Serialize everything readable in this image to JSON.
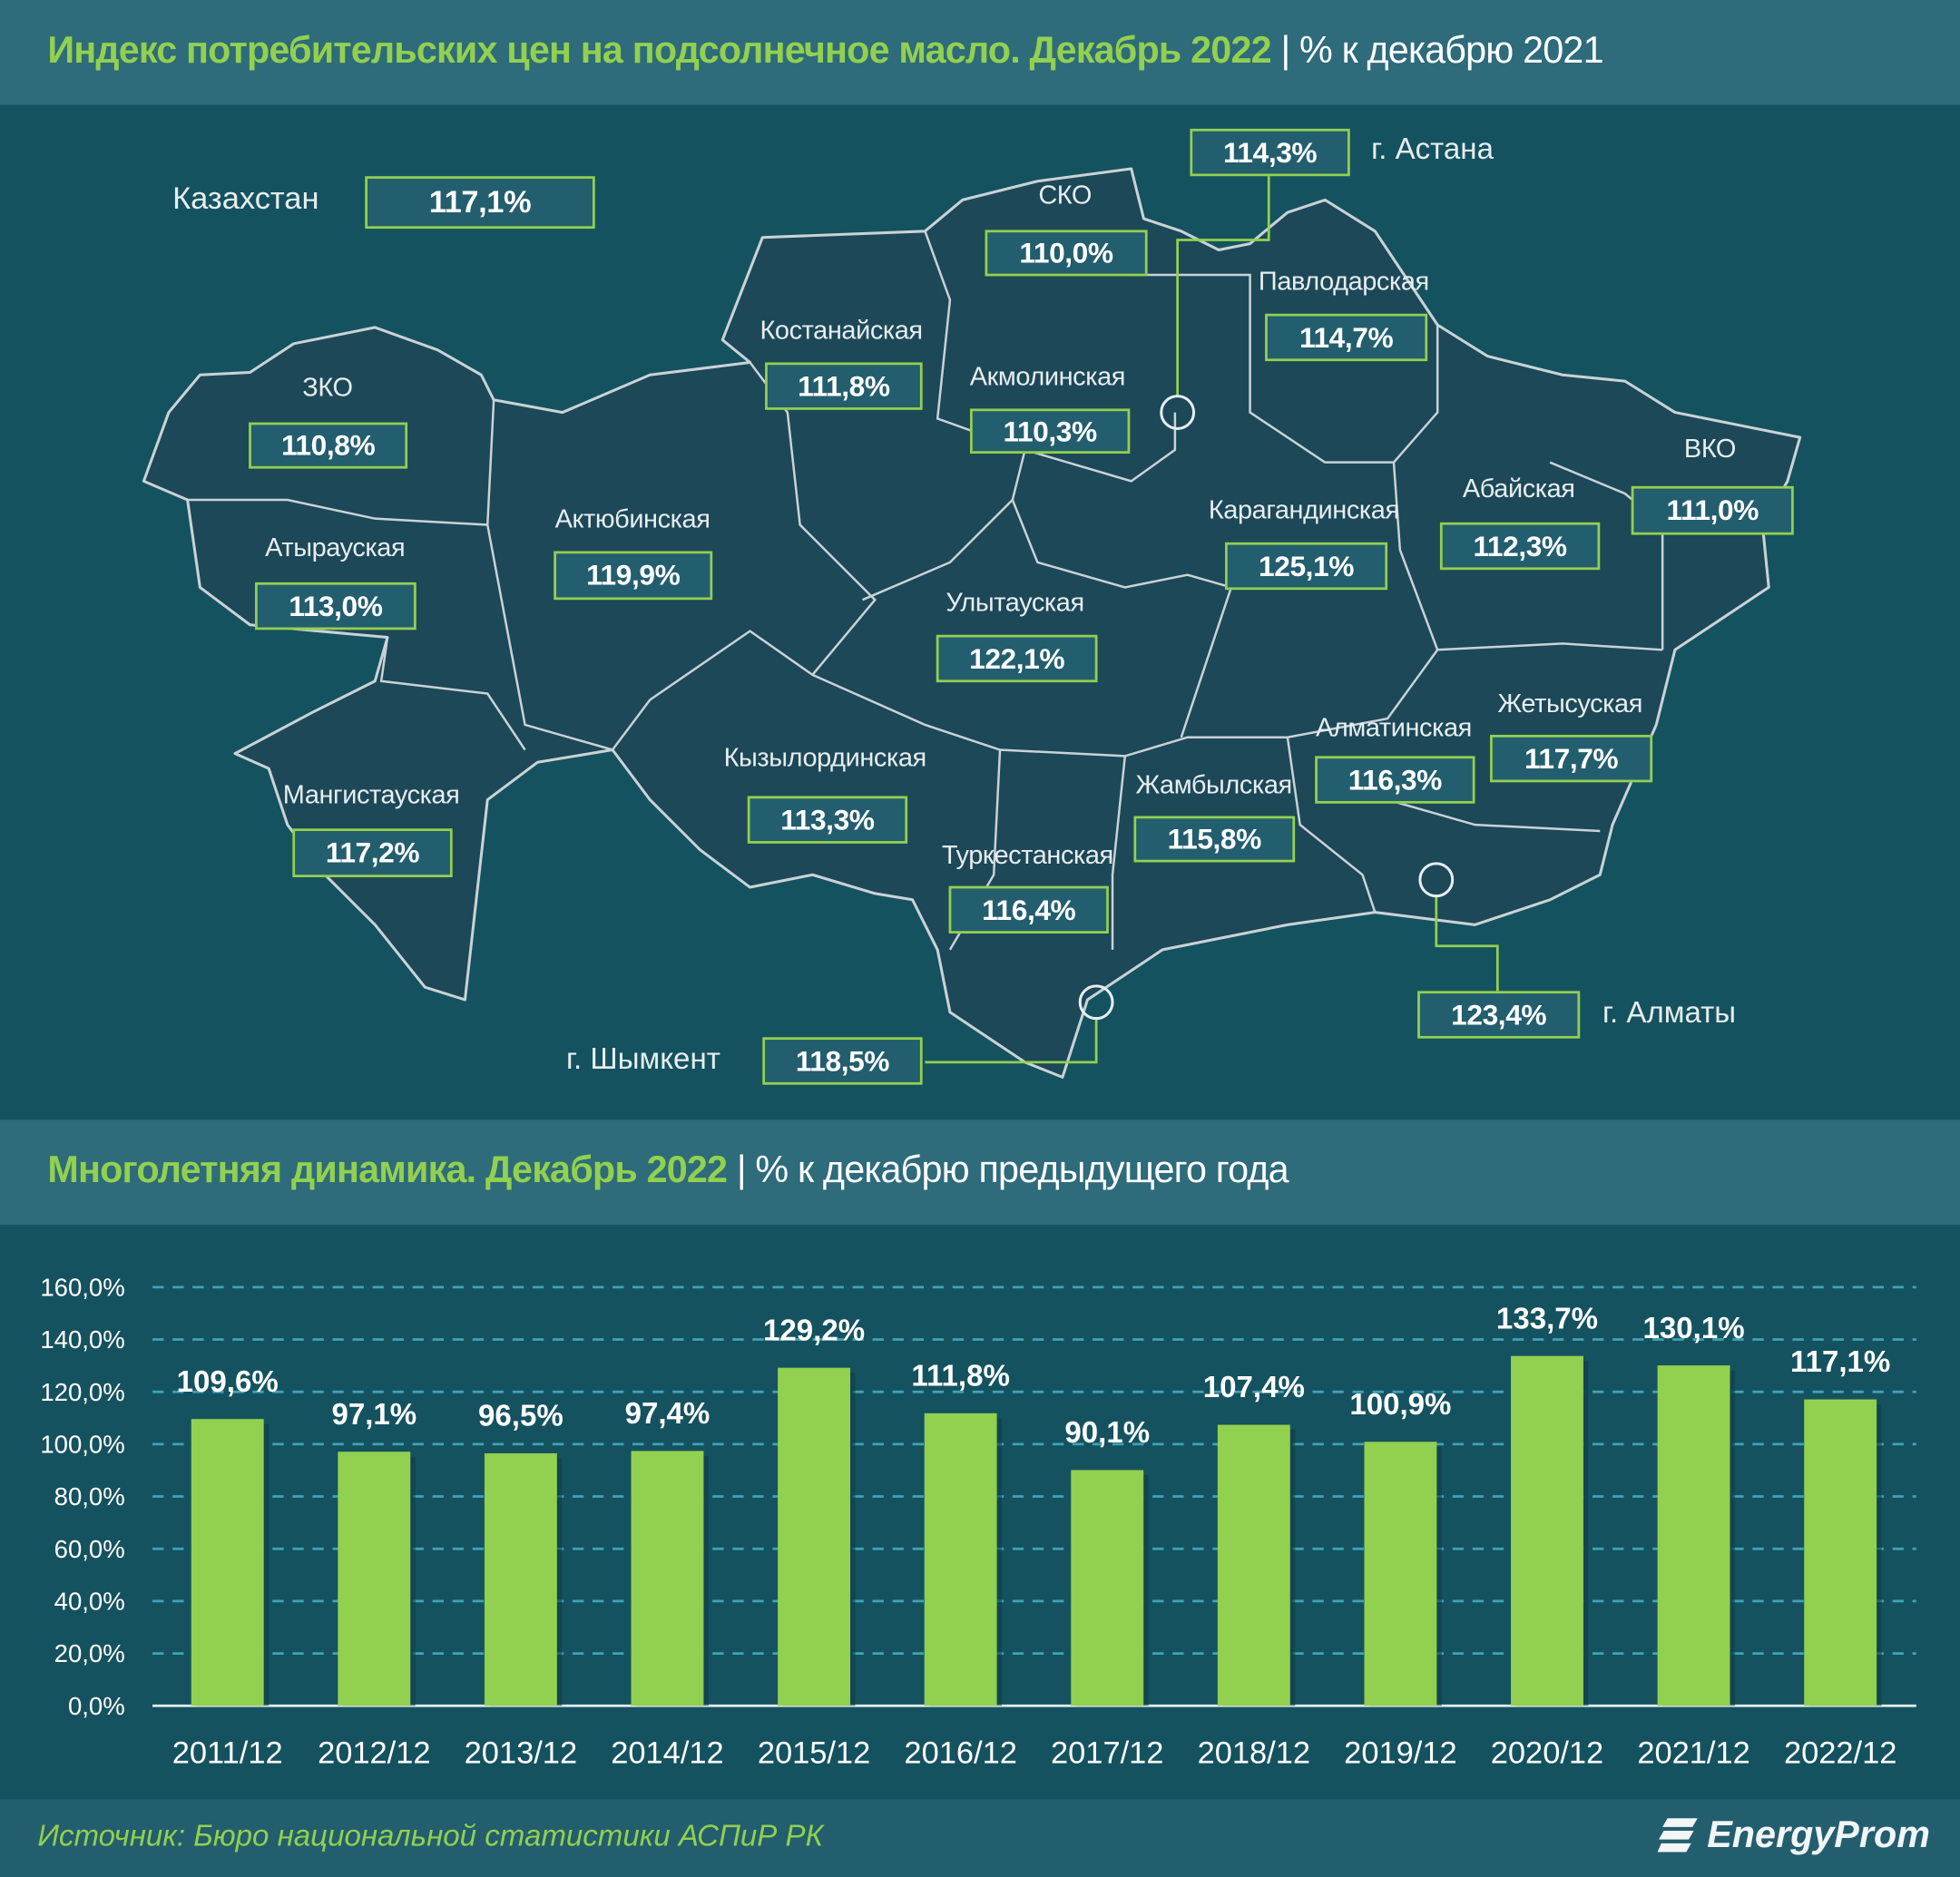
{
  "header1": {
    "title_green": "Индекс потребительских цен на подсолнечное масло. Декабрь 2022",
    "separator": " | ",
    "title_white": "% к декабрю 2021"
  },
  "map": {
    "country": {
      "name": "Казахстан",
      "value": "117,1%"
    },
    "regions": [
      {
        "name": "г. Астана",
        "value": "114,3%"
      },
      {
        "name": "СКО",
        "value": "110,0%"
      },
      {
        "name": "Павлодарская",
        "value": "114,7%"
      },
      {
        "name": "Костанайская",
        "value": "111,8%"
      },
      {
        "name": "Акмолинская",
        "value": "110,3%"
      },
      {
        "name": "ЗКО",
        "value": "110,8%"
      },
      {
        "name": "Актюбинская",
        "value": "119,9%"
      },
      {
        "name": "Карагандинская",
        "value": "125,1%"
      },
      {
        "name": "Абайская",
        "value": "112,3%"
      },
      {
        "name": "ВКО",
        "value": "111,0%"
      },
      {
        "name": "Атырауская",
        "value": "113,0%"
      },
      {
        "name": "Улытауская",
        "value": "122,1%"
      },
      {
        "name": "Жетысуская",
        "value": "117,7%"
      },
      {
        "name": "Алматинская",
        "value": "116,3%"
      },
      {
        "name": "Кызылординская",
        "value": "113,3%"
      },
      {
        "name": "Жамбылская",
        "value": "115,8%"
      },
      {
        "name": "Мангистауская",
        "value": "117,2%"
      },
      {
        "name": "Туркестанская",
        "value": "116,4%"
      },
      {
        "name": "г. Алматы",
        "value": "123,4%"
      },
      {
        "name": "г. Шымкент",
        "value": "118,5%"
      }
    ]
  },
  "header2": {
    "title_green": "Многолетняя динамика. Декабрь 2022",
    "separator": " | ",
    "title_white": "% к декабрю предыдущего года"
  },
  "chart_data": {
    "type": "bar",
    "categories": [
      "2011/12",
      "2012/12",
      "2013/12",
      "2014/12",
      "2015/12",
      "2016/12",
      "2017/12",
      "2018/12",
      "2019/12",
      "2020/12",
      "2021/12",
      "2022/12"
    ],
    "values": [
      109.6,
      97.1,
      96.5,
      97.4,
      129.2,
      111.8,
      90.1,
      107.4,
      100.9,
      133.7,
      130.1,
      117.1
    ],
    "value_labels": [
      "109,6%",
      "97,1%",
      "96,5%",
      "97,4%",
      "129,2%",
      "111,8%",
      "90,1%",
      "107,4%",
      "100,9%",
      "133,7%",
      "130,1%",
      "117,1%"
    ],
    "y_ticks": [
      "0,0%",
      "20,0%",
      "40,0%",
      "60,0%",
      "80,0%",
      "100,0%",
      "120,0%",
      "140,0%",
      "160,0%"
    ],
    "ylim": [
      0,
      160
    ],
    "grid": true,
    "bar_color": "#92d050"
  },
  "footer": {
    "source": "Источник: Бюро национальной статистики АСПиР РК",
    "logo": "EnergyProm"
  },
  "colors": {
    "accent": "#92d050",
    "background": "#15525f",
    "header": "#2e6b7b"
  }
}
